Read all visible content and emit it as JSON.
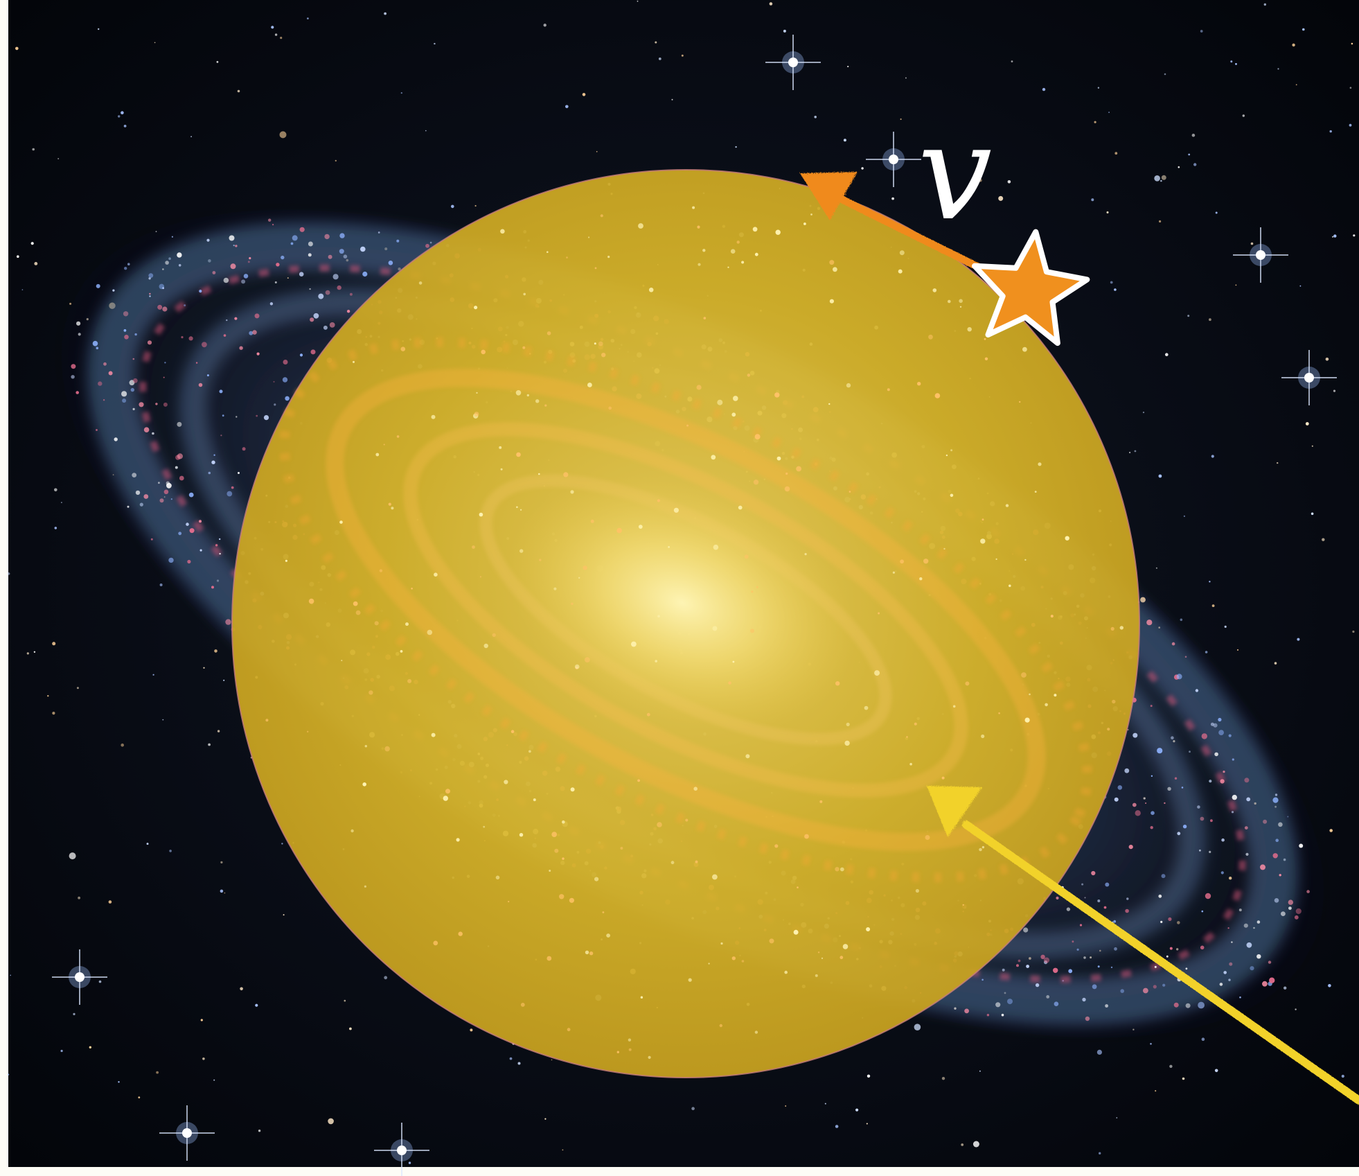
{
  "velocity_label": "v",
  "colors": {
    "frame": "#fdfcf6",
    "space": "#05070c",
    "halo": "#d9b62a",
    "halo_edge": "#c9807a",
    "core": "#fff2a8",
    "arm_orange": "#ffb340",
    "arm_blue": "#5a7fb0",
    "arm_pink": "#d9577a",
    "star_marker": "#f0901e",
    "velocity_arrow": "#f08a1e",
    "pointer_arrow": "#f2d22a",
    "label": "#ffffff"
  },
  "icons": {
    "star_marker": "star-icon",
    "velocity_arrow": "arrow-icon",
    "pointer_arrow": "arrow-icon"
  }
}
